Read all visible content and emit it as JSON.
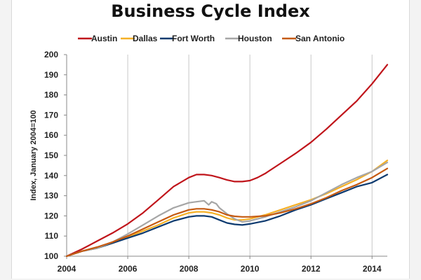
{
  "chart_data": {
    "type": "line",
    "title": "Business Cycle Index",
    "xlabel": "",
    "ylabel": "Index, January 2004=100",
    "xlim": [
      2004,
      2014.5
    ],
    "ylim": [
      100,
      200
    ],
    "xticks": [
      "2004",
      "2006",
      "2008",
      "2010",
      "2012",
      "2014"
    ],
    "yticks": [
      "100",
      "110",
      "120",
      "130",
      "140",
      "150",
      "160",
      "170",
      "180",
      "190",
      "200"
    ],
    "grid": "vertical",
    "legend": "top",
    "series": [
      {
        "name": "Austin",
        "color": "#c0151b",
        "x": [
          2004,
          2004.5,
          2005,
          2005.5,
          2006,
          2006.5,
          2007,
          2007.5,
          2008,
          2008.25,
          2008.5,
          2008.75,
          2009,
          2009.25,
          2009.5,
          2009.75,
          2010,
          2010.25,
          2010.5,
          2011,
          2011.5,
          2012,
          2012.5,
          2013,
          2013.5,
          2014,
          2014.5
        ],
        "values": [
          100,
          103.5,
          107.5,
          111.5,
          116,
          121.5,
          128,
          134.5,
          139,
          140.5,
          140.5,
          140,
          139,
          137.8,
          137,
          137,
          137.5,
          139,
          141,
          146,
          151,
          156.5,
          163,
          170,
          177,
          185.5,
          195
        ]
      },
      {
        "name": "Dallas",
        "color": "#f5b026",
        "x": [
          2004,
          2004.5,
          2005,
          2005.5,
          2006,
          2006.5,
          2007,
          2007.5,
          2008,
          2008.25,
          2008.5,
          2008.75,
          2009,
          2009.25,
          2009.5,
          2009.75,
          2010,
          2010.5,
          2011,
          2011.5,
          2012,
          2012.5,
          2013,
          2013.5,
          2014,
          2014.5
        ],
        "values": [
          100,
          102.5,
          104,
          106.5,
          109.5,
          112.5,
          115.5,
          119,
          121.5,
          122,
          122,
          121.5,
          120.5,
          119,
          118,
          118,
          118.5,
          120.5,
          123,
          125.5,
          128,
          131,
          134.5,
          138,
          142,
          147.5
        ]
      },
      {
        "name": "Fort Worth",
        "color": "#0d3a6f",
        "x": [
          2004,
          2004.5,
          2005,
          2005.5,
          2006,
          2006.5,
          2007,
          2007.5,
          2008,
          2008.25,
          2008.5,
          2008.75,
          2009,
          2009.25,
          2009.5,
          2009.75,
          2010,
          2010.5,
          2011,
          2011.5,
          2012,
          2012.5,
          2013,
          2013.5,
          2014,
          2014.5
        ],
        "values": [
          100,
          102.5,
          104,
          106.5,
          109,
          111.5,
          114.5,
          117.5,
          119.5,
          120,
          120,
          119.5,
          118,
          116.5,
          115.8,
          115.5,
          116,
          117.5,
          120,
          123,
          125.5,
          128.5,
          131.5,
          134.5,
          136.5,
          140.5
        ]
      },
      {
        "name": "Houston",
        "color": "#a6a6a6",
        "x": [
          2004,
          2004.5,
          2005,
          2005.5,
          2006,
          2006.5,
          2007,
          2007.5,
          2008,
          2008.25,
          2008.5,
          2008.65,
          2008.75,
          2008.9,
          2009,
          2009.25,
          2009.5,
          2009.75,
          2010,
          2010.5,
          2011,
          2011.5,
          2012,
          2012.5,
          2013,
          2013.5,
          2014,
          2014.5
        ],
        "values": [
          100,
          102.5,
          104,
          107,
          111,
          115.5,
          120,
          124,
          126.5,
          127,
          127.5,
          125.5,
          127,
          126,
          124,
          121,
          118.5,
          117,
          117.5,
          119.5,
          122,
          124.5,
          127.5,
          131.5,
          135.5,
          139,
          142,
          146.5
        ]
      },
      {
        "name": "San Antonio",
        "color": "#c55a11",
        "x": [
          2004,
          2004.5,
          2005,
          2005.5,
          2006,
          2006.5,
          2007,
          2007.5,
          2008,
          2008.25,
          2008.5,
          2008.75,
          2009,
          2009.25,
          2009.5,
          2009.75,
          2010,
          2010.5,
          2011,
          2011.5,
          2012,
          2012.5,
          2013,
          2013.5,
          2014,
          2014.5
        ],
        "values": [
          100,
          102.5,
          104.5,
          107,
          110,
          113.5,
          117,
          120.5,
          123,
          123.5,
          123.5,
          123,
          122,
          120.5,
          119.8,
          119.5,
          119.5,
          120,
          121.5,
          123.5,
          126,
          129,
          132.5,
          135.5,
          139,
          143.5
        ]
      }
    ]
  }
}
